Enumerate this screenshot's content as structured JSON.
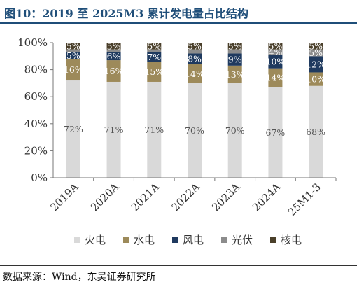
{
  "header": {
    "title": "图10：2019 至 2025M3 累计发电量占比结构"
  },
  "footer": {
    "source": "数据来源：Wind，东吴证券研究所"
  },
  "chart_data": {
    "type": "bar",
    "stacked": true,
    "categories": [
      "2019A",
      "2020A",
      "2021A",
      "2022A",
      "2023A",
      "2024A",
      "25M1-3"
    ],
    "ylim": [
      0,
      100
    ],
    "yticks": [
      "0%",
      "20%",
      "40%",
      "60%",
      "80%",
      "100%"
    ],
    "grid": false,
    "legend_position": "bottom",
    "series": [
      {
        "name": "火电",
        "color": "#d9d9d9",
        "values": [
          72,
          71,
          71,
          70,
          70,
          67,
          68
        ],
        "labels": [
          "72%",
          "71%",
          "71%",
          "70%",
          "70%",
          "67%",
          "68%"
        ]
      },
      {
        "name": "水电",
        "color": "#9d8a5a",
        "values": [
          16,
          16,
          15,
          14,
          13,
          14,
          10
        ],
        "labels": [
          "16%",
          "16%",
          "15%",
          "14%",
          "13%",
          "14%",
          "10%"
        ]
      },
      {
        "name": "风电",
        "color": "#1f3a5f",
        "values": [
          5,
          6,
          7,
          8,
          9,
          10,
          12
        ],
        "labels": [
          "5%",
          "6%",
          "7%",
          "8%",
          "9%",
          "10%",
          "12%"
        ]
      },
      {
        "name": "光伏",
        "color": "#8c8c8c",
        "values": [
          2,
          2,
          2,
          3,
          3,
          4,
          5
        ],
        "labels": [
          "",
          "",
          "",
          "",
          "",
          "4%",
          "5%"
        ]
      },
      {
        "name": "核电",
        "color": "#4a3f2a",
        "values": [
          5,
          5,
          5,
          5,
          5,
          5,
          5
        ],
        "labels": [
          "5%",
          "5%",
          "5%",
          "5%",
          "5%",
          "5%",
          "5%"
        ]
      }
    ]
  }
}
